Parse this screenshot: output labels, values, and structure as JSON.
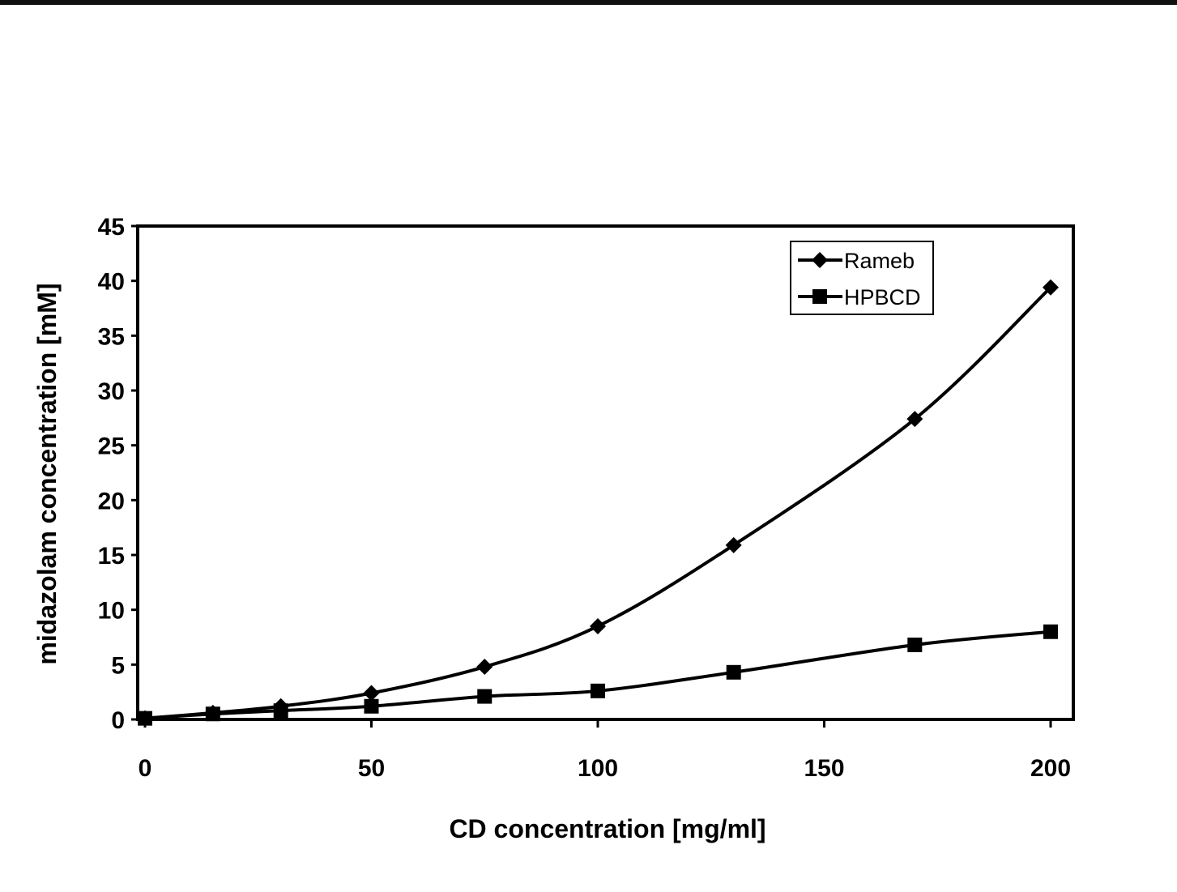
{
  "chart_data": {
    "type": "line",
    "xlabel": "CD concentration [mg/ml]",
    "ylabel": "midazolam concentration [mM]",
    "xlim": [
      0,
      200
    ],
    "ylim": [
      0,
      45
    ],
    "xticks": [
      0,
      50,
      100,
      150,
      200
    ],
    "yticks": [
      0,
      5,
      10,
      15,
      20,
      25,
      30,
      35,
      40,
      45
    ],
    "grid": false,
    "legend_position": "top-right",
    "series": [
      {
        "name": "Rameb",
        "marker": "diamond",
        "x": [
          0,
          15,
          30,
          50,
          75,
          100,
          130,
          170,
          200
        ],
        "y": [
          0.1,
          0.6,
          1.2,
          2.4,
          4.8,
          8.5,
          15.9,
          27.4,
          39.4
        ]
      },
      {
        "name": "HPBCD",
        "marker": "square",
        "x": [
          0,
          15,
          30,
          50,
          75,
          100,
          130,
          170,
          200
        ],
        "y": [
          0.1,
          0.5,
          0.8,
          1.2,
          2.1,
          2.6,
          4.3,
          6.8,
          8.0
        ]
      }
    ]
  }
}
